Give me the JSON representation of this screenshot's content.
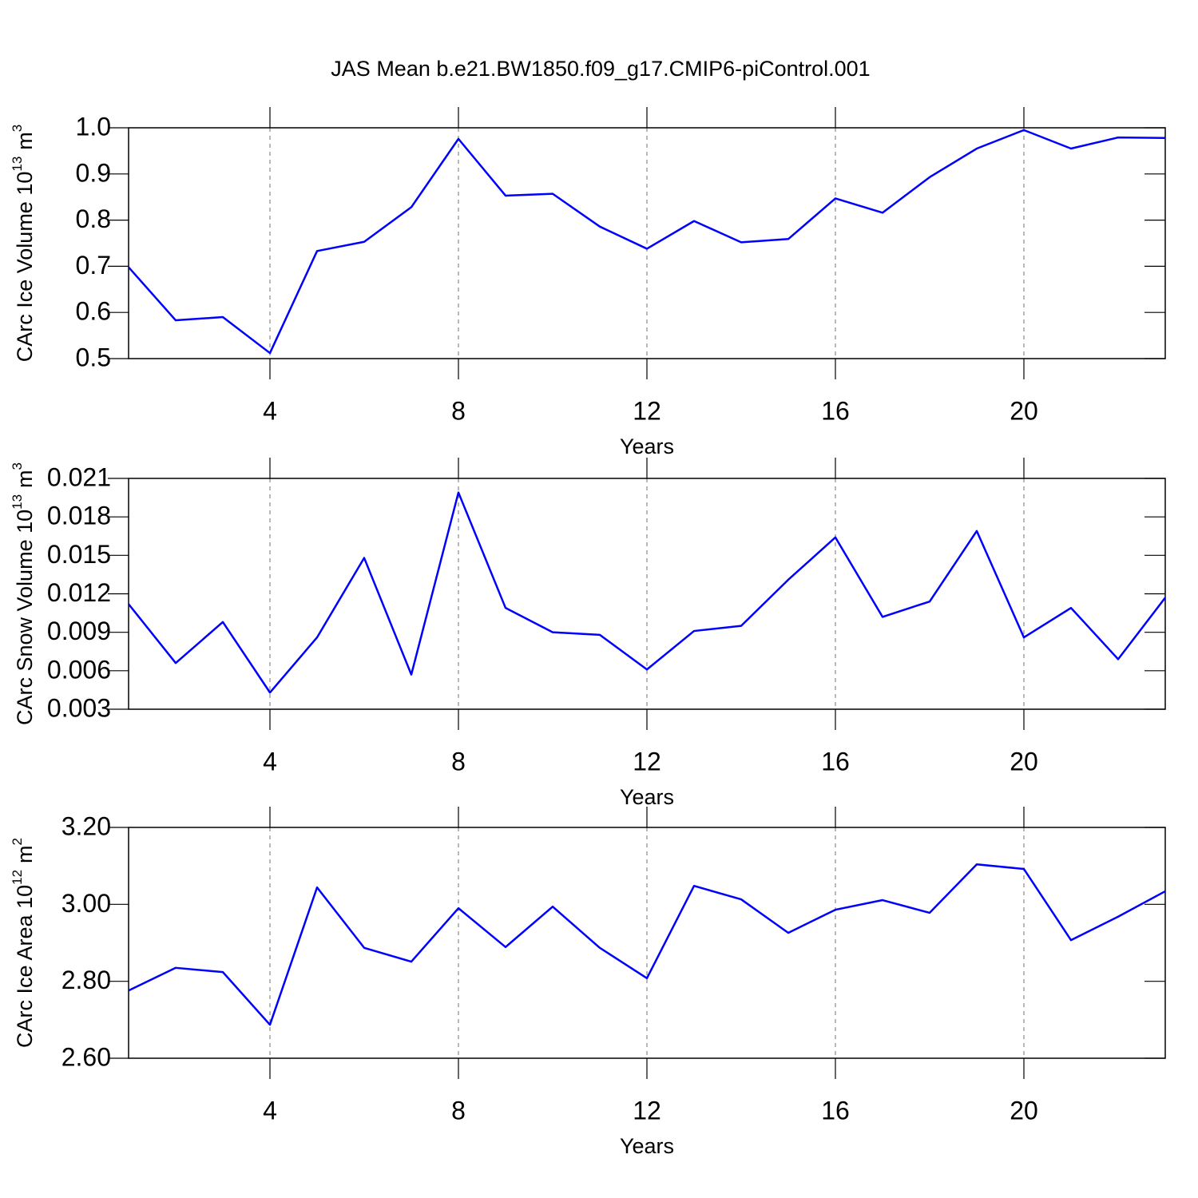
{
  "title": "JAS Mean b.e21.BW1850.f09_g17.CMIP6-piControl.001",
  "chart_data": [
    {
      "type": "line",
      "ylabel": [
        "CArc Ice Volume 10",
        "13",
        "m",
        "3"
      ],
      "xlabel": "Years",
      "x": [
        1,
        2,
        3,
        4,
        5,
        6,
        7,
        8,
        9,
        10,
        11,
        12,
        13,
        14,
        15,
        16,
        17,
        18,
        19,
        20,
        21,
        22,
        23
      ],
      "series": [
        {
          "color": "#0000ff",
          "values": [
            0.698,
            0.583,
            0.59,
            0.512,
            0.733,
            0.753,
            0.828,
            0.976,
            0.853,
            0.857,
            0.786,
            0.738,
            0.798,
            0.752,
            0.759,
            0.847,
            0.816,
            0.893,
            0.955,
            0.995,
            0.955,
            0.979,
            0.978
          ]
        }
      ],
      "xlim": [
        1,
        23
      ],
      "xticks": [
        4,
        8,
        12,
        16,
        20
      ],
      "ylim": [
        0.5,
        1.0
      ],
      "yticks": [
        {
          "value": 0.5,
          "label": "0.5"
        },
        {
          "value": 0.6,
          "label": "0.6"
        },
        {
          "value": 0.7,
          "label": "0.7"
        },
        {
          "value": 0.8,
          "label": "0.8"
        },
        {
          "value": 0.9,
          "label": "0.9"
        },
        {
          "value": 1.0,
          "label": "1.0"
        }
      ],
      "grid": true
    },
    {
      "type": "line",
      "ylabel": [
        "CArc Snow Volume 10",
        "13",
        "m",
        "3"
      ],
      "xlabel": "Years",
      "x": [
        1,
        2,
        3,
        4,
        5,
        6,
        7,
        8,
        9,
        10,
        11,
        12,
        13,
        14,
        15,
        16,
        17,
        18,
        19,
        20,
        21,
        22,
        23
      ],
      "series": [
        {
          "color": "#0000ff",
          "values": [
            0.0112,
            0.0066,
            0.0098,
            0.0043,
            0.0086,
            0.0148,
            0.0057,
            0.0199,
            0.0109,
            0.009,
            0.0088,
            0.0061,
            0.0091,
            0.0095,
            0.0131,
            0.0164,
            0.0102,
            0.0114,
            0.0169,
            0.0086,
            0.0109,
            0.0069,
            0.0117
          ]
        }
      ],
      "xlim": [
        1,
        23
      ],
      "xticks": [
        4,
        8,
        12,
        16,
        20
      ],
      "ylim": [
        0.003,
        0.021
      ],
      "yticks": [
        0.003,
        0.006,
        0.009,
        0.012,
        0.015,
        0.018,
        0.021
      ],
      "grid": true
    },
    {
      "type": "line",
      "ylabel": [
        "CArc Ice Area 10",
        "12",
        "m",
        "2"
      ],
      "xlabel": "Years",
      "x": [
        1,
        2,
        3,
        4,
        5,
        6,
        7,
        8,
        9,
        10,
        11,
        12,
        13,
        14,
        15,
        16,
        17,
        18,
        19,
        20,
        21,
        22,
        23
      ],
      "series": [
        {
          "color": "#0000ff",
          "values": [
            2.776,
            2.835,
            2.824,
            2.687,
            3.044,
            2.887,
            2.851,
            2.99,
            2.889,
            2.994,
            2.887,
            2.808,
            3.048,
            3.013,
            2.926,
            2.986,
            3.011,
            2.978,
            3.104,
            3.092,
            2.907,
            2.968,
            3.034
          ]
        }
      ],
      "xlim": [
        1,
        23
      ],
      "xticks": [
        4,
        8,
        12,
        16,
        20
      ],
      "ylim": [
        2.6,
        3.2
      ],
      "yticks": [
        {
          "value": 2.6,
          "label": "2.60"
        },
        {
          "value": 2.8,
          "label": "2.80"
        },
        {
          "value": 3.0,
          "label": "3.00"
        },
        {
          "value": 3.2,
          "label": "3.20"
        }
      ],
      "grid": true
    }
  ]
}
